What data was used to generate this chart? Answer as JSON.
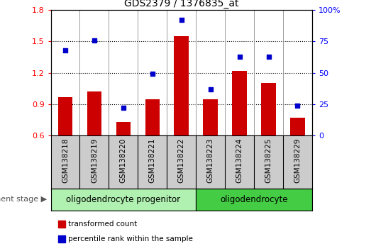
{
  "title": "GDS2379 / 1376835_at",
  "categories": [
    "GSM138218",
    "GSM138219",
    "GSM138220",
    "GSM138221",
    "GSM138222",
    "GSM138223",
    "GSM138224",
    "GSM138225",
    "GSM138229"
  ],
  "red_values": [
    0.97,
    1.02,
    0.73,
    0.95,
    1.55,
    0.95,
    1.22,
    1.1,
    0.77
  ],
  "blue_values": [
    68,
    76,
    22,
    49,
    92,
    37,
    63,
    63,
    24
  ],
  "ylim_left": [
    0.6,
    1.8
  ],
  "ylim_right": [
    0,
    100
  ],
  "yticks_left": [
    0.6,
    0.9,
    1.2,
    1.5,
    1.8
  ],
  "yticks_right": [
    0,
    25,
    50,
    75,
    100
  ],
  "ytick_labels_right": [
    "0",
    "25",
    "50",
    "75",
    "100%"
  ],
  "group1_label": "oligodendrocyte progenitor",
  "group2_label": "oligodendrocyte",
  "group1_count": 5,
  "group2_count": 4,
  "dev_stage_label": "development stage",
  "legend_red": "transformed count",
  "legend_blue": "percentile rank within the sample",
  "bar_color": "#cc0000",
  "dot_color": "#0000cc",
  "group1_color": "#b0f0b0",
  "group2_color": "#44cc44",
  "tick_bg_color": "#cccccc",
  "bar_width": 0.5
}
